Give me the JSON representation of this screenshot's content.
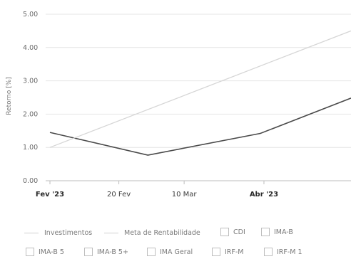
{
  "chart_data": {
    "type": "line",
    "ylabel": "Retorno [%]",
    "ylim": [
      0,
      5
    ],
    "y_ticks": [
      "0.00",
      "1.00",
      "2.00",
      "3.00",
      "4.00",
      "5.00"
    ],
    "x_range": [
      "2023-02-01",
      "2023-04-25"
    ],
    "x_ticks": [
      {
        "label": "Fev '23",
        "date": "2023-02-01",
        "bold": true
      },
      {
        "label": "20 Fev",
        "date": "2023-02-20",
        "bold": false
      },
      {
        "label": "10 Mar",
        "date": "2023-03-10",
        "bold": false
      },
      {
        "label": "Abr '23",
        "date": "2023-04-01",
        "bold": true
      }
    ],
    "series": [
      {
        "name": "Investimentos",
        "color": "#4a4a4a",
        "points": [
          {
            "x": "2023-02-01",
            "y": 1.45
          },
          {
            "x": "2023-02-28",
            "y": 0.77
          },
          {
            "x": "2023-03-31",
            "y": 1.42
          },
          {
            "x": "2023-04-25",
            "y": 2.48
          }
        ]
      },
      {
        "name": "Meta de Rentabilidade",
        "color": "#d6d6d6",
        "points": [
          {
            "x": "2023-02-01",
            "y": 1.0
          },
          {
            "x": "2023-04-25",
            "y": 4.5
          }
        ]
      }
    ],
    "grid": true,
    "legend_position": "bottom",
    "legend": [
      {
        "label": "Investimentos",
        "style": "line"
      },
      {
        "label": "Meta de Rentabilidade",
        "style": "line"
      },
      {
        "label": "CDI",
        "style": "box"
      },
      {
        "label": "IMA-B",
        "style": "box"
      },
      {
        "label": "IMA-B 5",
        "style": "box"
      },
      {
        "label": "IMA-B 5+",
        "style": "box"
      },
      {
        "label": "IMA Geral",
        "style": "box"
      },
      {
        "label": "IRF-M",
        "style": "box"
      },
      {
        "label": "IRF-M 1",
        "style": "box"
      }
    ]
  }
}
